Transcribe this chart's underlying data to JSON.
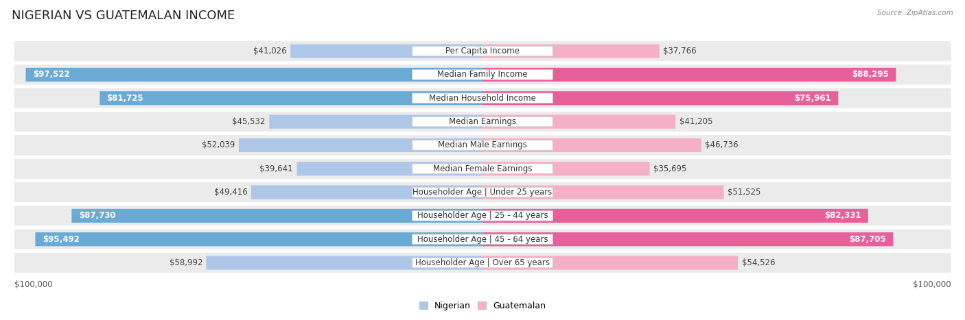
{
  "title": "NIGERIAN VS GUATEMALAN INCOME",
  "source": "Source: ZipAtlas.com",
  "categories": [
    "Per Capita Income",
    "Median Family Income",
    "Median Household Income",
    "Median Earnings",
    "Median Male Earnings",
    "Median Female Earnings",
    "Householder Age | Under 25 years",
    "Householder Age | 25 - 44 years",
    "Householder Age | 45 - 64 years",
    "Householder Age | Over 65 years"
  ],
  "nigerian": [
    41026,
    97522,
    81725,
    45532,
    52039,
    39641,
    49416,
    87730,
    95492,
    58992
  ],
  "guatemalan": [
    37766,
    88295,
    75961,
    41205,
    46736,
    35695,
    51525,
    82331,
    87705,
    54526
  ],
  "max_val": 100000,
  "nigerian_color_light": "#aec6e8",
  "nigerian_color_dark": "#6aaad4",
  "guatemalan_color_light": "#f5b0c8",
  "guatemalan_color_dark": "#e8609a",
  "row_bg": "#ebebeb",
  "title_fontsize": 13,
  "label_fontsize": 8.5,
  "value_fontsize": 8.5,
  "legend_fontsize": 9,
  "axis_label_fontsize": 8.5,
  "dark_threshold": 0.6
}
